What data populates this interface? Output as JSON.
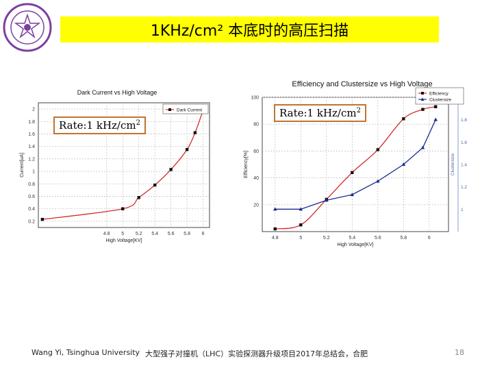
{
  "slide": {
    "title": "1KHz/cm² 本底时的高压扫描",
    "footer_left": "Wang Yi, Tsinghua University",
    "footer_center": "大型强子对撞机（LHC）实验探测器升级项目2017年总结会，合肥",
    "page_number": "18",
    "logo": "university-seal-icon",
    "accent_color": "#ffff00"
  },
  "annotations": {
    "left_rate_text": "Rate:1 kHz/cm",
    "left_rate_sup": "2",
    "right_rate_text": "Rate:1 kHz/cm",
    "right_rate_sup": "2"
  },
  "chart_data": [
    {
      "type": "line",
      "title": "Dark Current vs High Voltage",
      "xlabel": "High Voltage[KV]",
      "ylabel": "Current[uA]",
      "xlim": [
        3.95,
        6.08
      ],
      "ylim": [
        0.1,
        2.1
      ],
      "x_ticks": [
        "4.8",
        "5",
        "5.2",
        "5.4",
        "5.6",
        "5.8",
        "6"
      ],
      "y_ticks": [
        "0.2",
        "0.4",
        "0.6",
        "0.8",
        "1",
        "1.2",
        "1.4",
        "1.6",
        "1.8",
        "2"
      ],
      "legend": "top-right",
      "grid": true,
      "series": [
        {
          "name": "Dark Current",
          "color": "#d42a2a",
          "x": [
            4.0,
            5.0,
            5.2,
            5.4,
            5.6,
            5.8,
            5.9,
            6.0
          ],
          "y": [
            0.23,
            0.4,
            0.58,
            0.78,
            1.03,
            1.35,
            1.62,
            1.98
          ]
        }
      ]
    },
    {
      "type": "line",
      "title": "Efficiency and Clustersize vs High Voltage",
      "xlabel": "High Voltage[KV]",
      "ylabel": "Efficiency[%]",
      "y2label": "Clustersize",
      "xlim": [
        4.7,
        6.15
      ],
      "ylim": [
        0,
        100
      ],
      "y2lim": [
        0.8,
        2.0
      ],
      "x_ticks": [
        "4.8",
        "5",
        "5.2",
        "5.4",
        "5.6",
        "5.8",
        "6"
      ],
      "y_ticks": [
        "20",
        "40",
        "60",
        "80",
        "100"
      ],
      "y2_ticks": [
        "1",
        "1.2",
        "1.4",
        "1.6",
        "1.8",
        "2"
      ],
      "legend": "top-right",
      "grid": true,
      "series": [
        {
          "name": "Efficiency",
          "color": "#d42a2a",
          "axis": "left",
          "x": [
            4.8,
            5.0,
            5.2,
            5.4,
            5.6,
            5.8,
            5.95,
            6.05
          ],
          "y": [
            2,
            5,
            24,
            44,
            61,
            84,
            91,
            93
          ]
        },
        {
          "name": "Clustersize",
          "color": "#1b2a8f",
          "axis": "right",
          "x": [
            4.8,
            5.0,
            5.2,
            5.4,
            5.6,
            5.8,
            5.95,
            6.05
          ],
          "y": [
            1.0,
            1.0,
            1.08,
            1.13,
            1.25,
            1.4,
            1.55,
            1.8
          ]
        }
      ]
    }
  ]
}
